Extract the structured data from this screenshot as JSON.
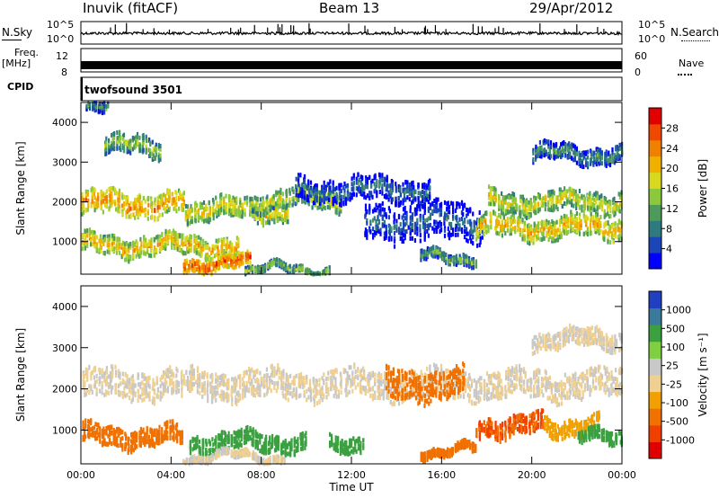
{
  "header": {
    "title": "Inuvik (fitACF)",
    "beam": "Beam 13",
    "date": "29/Apr/2012"
  },
  "summary": {
    "nsky_label": "N.Sky",
    "nsky_ticks": [
      "10^5",
      "10^0"
    ],
    "nsearch_label": "N.Search",
    "freq_label": "Freq.",
    "freq_unit": "[MHz]",
    "freq_ticks": [
      "12",
      "8"
    ],
    "nave_label": "Nave",
    "nave_ticks": [
      "60",
      "0"
    ],
    "cpid_label": "CPID",
    "cpid_value": "twofsound 3501"
  },
  "chart_data": [
    {
      "type": "heatmap",
      "name_panel": "power",
      "xlabel": "",
      "ylabel": "Slant Range [km]",
      "x_ticks": [
        "00:00",
        "04:00",
        "08:00",
        "12:00",
        "16:00",
        "20:00",
        "00:00"
      ],
      "y_ticks": [
        1000,
        2000,
        3000,
        4000
      ],
      "ylim": [
        180,
        4500
      ],
      "xlim_hours": [
        0,
        24
      ],
      "colorbar": {
        "label": "Power [dB]",
        "ticks": [
          "4",
          "8",
          "12",
          "16",
          "20",
          "24",
          "28"
        ],
        "colors": [
          "#0000ff",
          "#1a46b8",
          "#2f7a7e",
          "#4e9a5a",
          "#8cc83c",
          "#d8d820",
          "#f0b000",
          "#f08000",
          "#f04800",
          "#e00000"
        ]
      },
      "echo_bands": [
        {
          "t0": 0,
          "t1": 4.6,
          "r_center": 1950,
          "r_width": 550,
          "value": 24
        },
        {
          "t0": 0,
          "t1": 7.0,
          "r_center": 900,
          "r_width": 450,
          "value": 22
        },
        {
          "t0": 4.5,
          "t1": 7.5,
          "r_center": 450,
          "r_width": 300,
          "value": 28
        },
        {
          "t0": 4.6,
          "t1": 9.2,
          "r_center": 1800,
          "r_width": 500,
          "value": 20
        },
        {
          "t0": 7.5,
          "t1": 11.5,
          "r_center": 2050,
          "r_width": 450,
          "value": 18
        },
        {
          "t0": 9.5,
          "t1": 15.5,
          "r_center": 2300,
          "r_width": 550,
          "value": 9
        },
        {
          "t0": 12.5,
          "t1": 17.8,
          "r_center": 1500,
          "r_width": 900,
          "value": 8
        },
        {
          "t0": 15.0,
          "t1": 17.5,
          "r_center": 600,
          "r_width": 250,
          "value": 14
        },
        {
          "t0": 17.5,
          "t1": 24,
          "r_center": 1350,
          "r_width": 500,
          "value": 22
        },
        {
          "t0": 18.0,
          "t1": 24,
          "r_center": 2000,
          "r_width": 500,
          "value": 19
        },
        {
          "t0": 20.0,
          "t1": 24,
          "r_center": 3200,
          "r_width": 400,
          "value": 12
        },
        {
          "t0": 1.0,
          "t1": 3.5,
          "r_center": 3400,
          "r_width": 450,
          "value": 16
        },
        {
          "t0": 7.2,
          "t1": 11.0,
          "r_center": 300,
          "r_width": 150,
          "value": 16
        },
        {
          "t0": 0.2,
          "t1": 1.2,
          "r_center": 4300,
          "r_width": 250,
          "value": 12
        }
      ]
    },
    {
      "type": "heatmap",
      "name_panel": "velocity",
      "xlabel": "Time UT",
      "ylabel": "Slant Range [km]",
      "x_ticks": [
        "00:00",
        "04:00",
        "08:00",
        "12:00",
        "16:00",
        "20:00",
        "00:00"
      ],
      "y_ticks": [
        1000,
        2000,
        3000,
        4000
      ],
      "ylim": [
        180,
        4500
      ],
      "xlim_hours": [
        0,
        24
      ],
      "colorbar": {
        "label": "Velocity [m s⁻¹]",
        "ticks": [
          "-1000",
          "-500",
          "-100",
          "-25",
          "25",
          "100",
          "500",
          "1000"
        ],
        "colors": [
          "#e00000",
          "#f04000",
          "#f07000",
          "#f0a000",
          "#f0d090",
          "#c8c8c8",
          "#7ed040",
          "#3aa040",
          "#3a7a9a",
          "#2040c0"
        ]
      },
      "echo_bands": [
        {
          "t0": 0,
          "t1": 24,
          "r_center": 2100,
          "r_width": 650,
          "value": 0
        },
        {
          "t0": 0,
          "t1": 4.5,
          "r_center": 850,
          "r_width": 450,
          "value": -300
        },
        {
          "t0": 4.8,
          "t1": 10.0,
          "r_center": 700,
          "r_width": 400,
          "value": 300
        },
        {
          "t0": 11.0,
          "t1": 12.5,
          "r_center": 700,
          "r_width": 350,
          "value": 300
        },
        {
          "t0": 13.5,
          "t1": 17.0,
          "r_center": 2100,
          "r_width": 700,
          "value": -300
        },
        {
          "t0": 17.5,
          "t1": 20.5,
          "r_center": 1100,
          "r_width": 450,
          "value": -500
        },
        {
          "t0": 20.5,
          "t1": 23.0,
          "r_center": 1100,
          "r_width": 400,
          "value": -50
        },
        {
          "t0": 22.0,
          "t1": 24,
          "r_center": 800,
          "r_width": 300,
          "value": 300
        },
        {
          "t0": 20.0,
          "t1": 24,
          "r_center": 3200,
          "r_width": 400,
          "value": 0
        },
        {
          "t0": 4.5,
          "t1": 9.0,
          "r_center": 350,
          "r_width": 150,
          "value": 0
        },
        {
          "t0": 15.0,
          "t1": 17.5,
          "r_center": 500,
          "r_width": 200,
          "value": -300
        }
      ]
    }
  ]
}
